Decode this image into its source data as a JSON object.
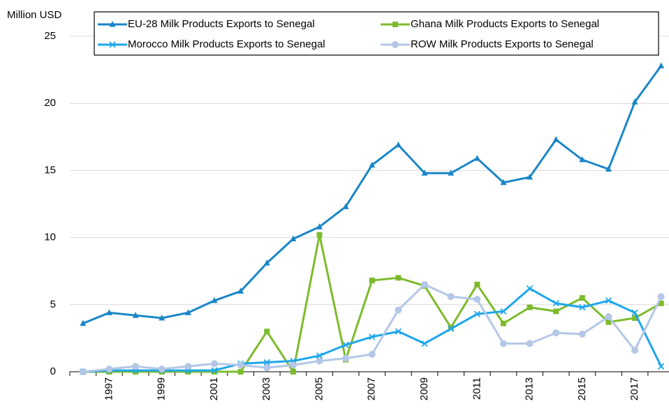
{
  "chart_data": {
    "type": "line",
    "y_axis_label": "Million USD",
    "x": [
      1996,
      1997,
      1998,
      1999,
      2000,
      2001,
      2002,
      2003,
      2004,
      2005,
      2006,
      2007,
      2008,
      2009,
      2010,
      2011,
      2012,
      2013,
      2014,
      2015,
      2016,
      2017,
      2018
    ],
    "xlim": [
      1995.5,
      2018.3
    ],
    "xticks": [
      1997,
      1999,
      2001,
      2003,
      2005,
      2007,
      2009,
      2011,
      2013,
      2015,
      2017
    ],
    "ylim": [
      0,
      25
    ],
    "yticks": [
      0,
      5,
      10,
      15,
      20,
      25
    ],
    "grid": true,
    "legend": "top",
    "series": [
      {
        "name": "EU-28 Milk Products Exports to Senegal",
        "color": "#1a86c8",
        "marker": "triangle",
        "values": [
          3.6,
          4.4,
          4.2,
          4.0,
          4.4,
          5.3,
          6.0,
          8.1,
          9.9,
          10.8,
          12.3,
          15.4,
          16.9,
          14.8,
          14.8,
          15.9,
          14.1,
          14.5,
          17.3,
          15.8,
          15.1,
          20.1,
          22.8
        ]
      },
      {
        "name": "Ghana Milk Products Exports to Senegal",
        "color": "#7cbb2c",
        "marker": "square",
        "values": [
          0,
          0,
          0,
          0,
          0,
          0,
          0,
          3.0,
          0,
          10.2,
          0.9,
          6.8,
          7.0,
          6.4,
          3.3,
          6.5,
          3.6,
          4.8,
          4.5,
          5.5,
          3.7,
          4.0,
          5.1
        ]
      },
      {
        "name": "Morocco Milk Products Exports to Senegal",
        "color": "#1ea6ec",
        "marker": "x",
        "values": [
          0,
          0.1,
          0.1,
          0.1,
          0.1,
          0.1,
          0.6,
          0.7,
          0.8,
          1.2,
          2.0,
          2.6,
          3.0,
          2.1,
          3.2,
          4.3,
          4.5,
          6.2,
          5.1,
          4.8,
          5.3,
          4.4,
          0.4
        ]
      },
      {
        "name": "ROW Milk Products Exports to Senegal",
        "color": "#b4c7e7",
        "marker": "circle",
        "values": [
          0,
          0.2,
          0.4,
          0.2,
          0.4,
          0.6,
          0.5,
          0.3,
          0.5,
          0.8,
          1.0,
          1.3,
          4.6,
          6.5,
          5.6,
          5.4,
          2.1,
          2.1,
          2.9,
          2.8,
          4.1,
          1.6,
          5.6
        ]
      }
    ]
  }
}
